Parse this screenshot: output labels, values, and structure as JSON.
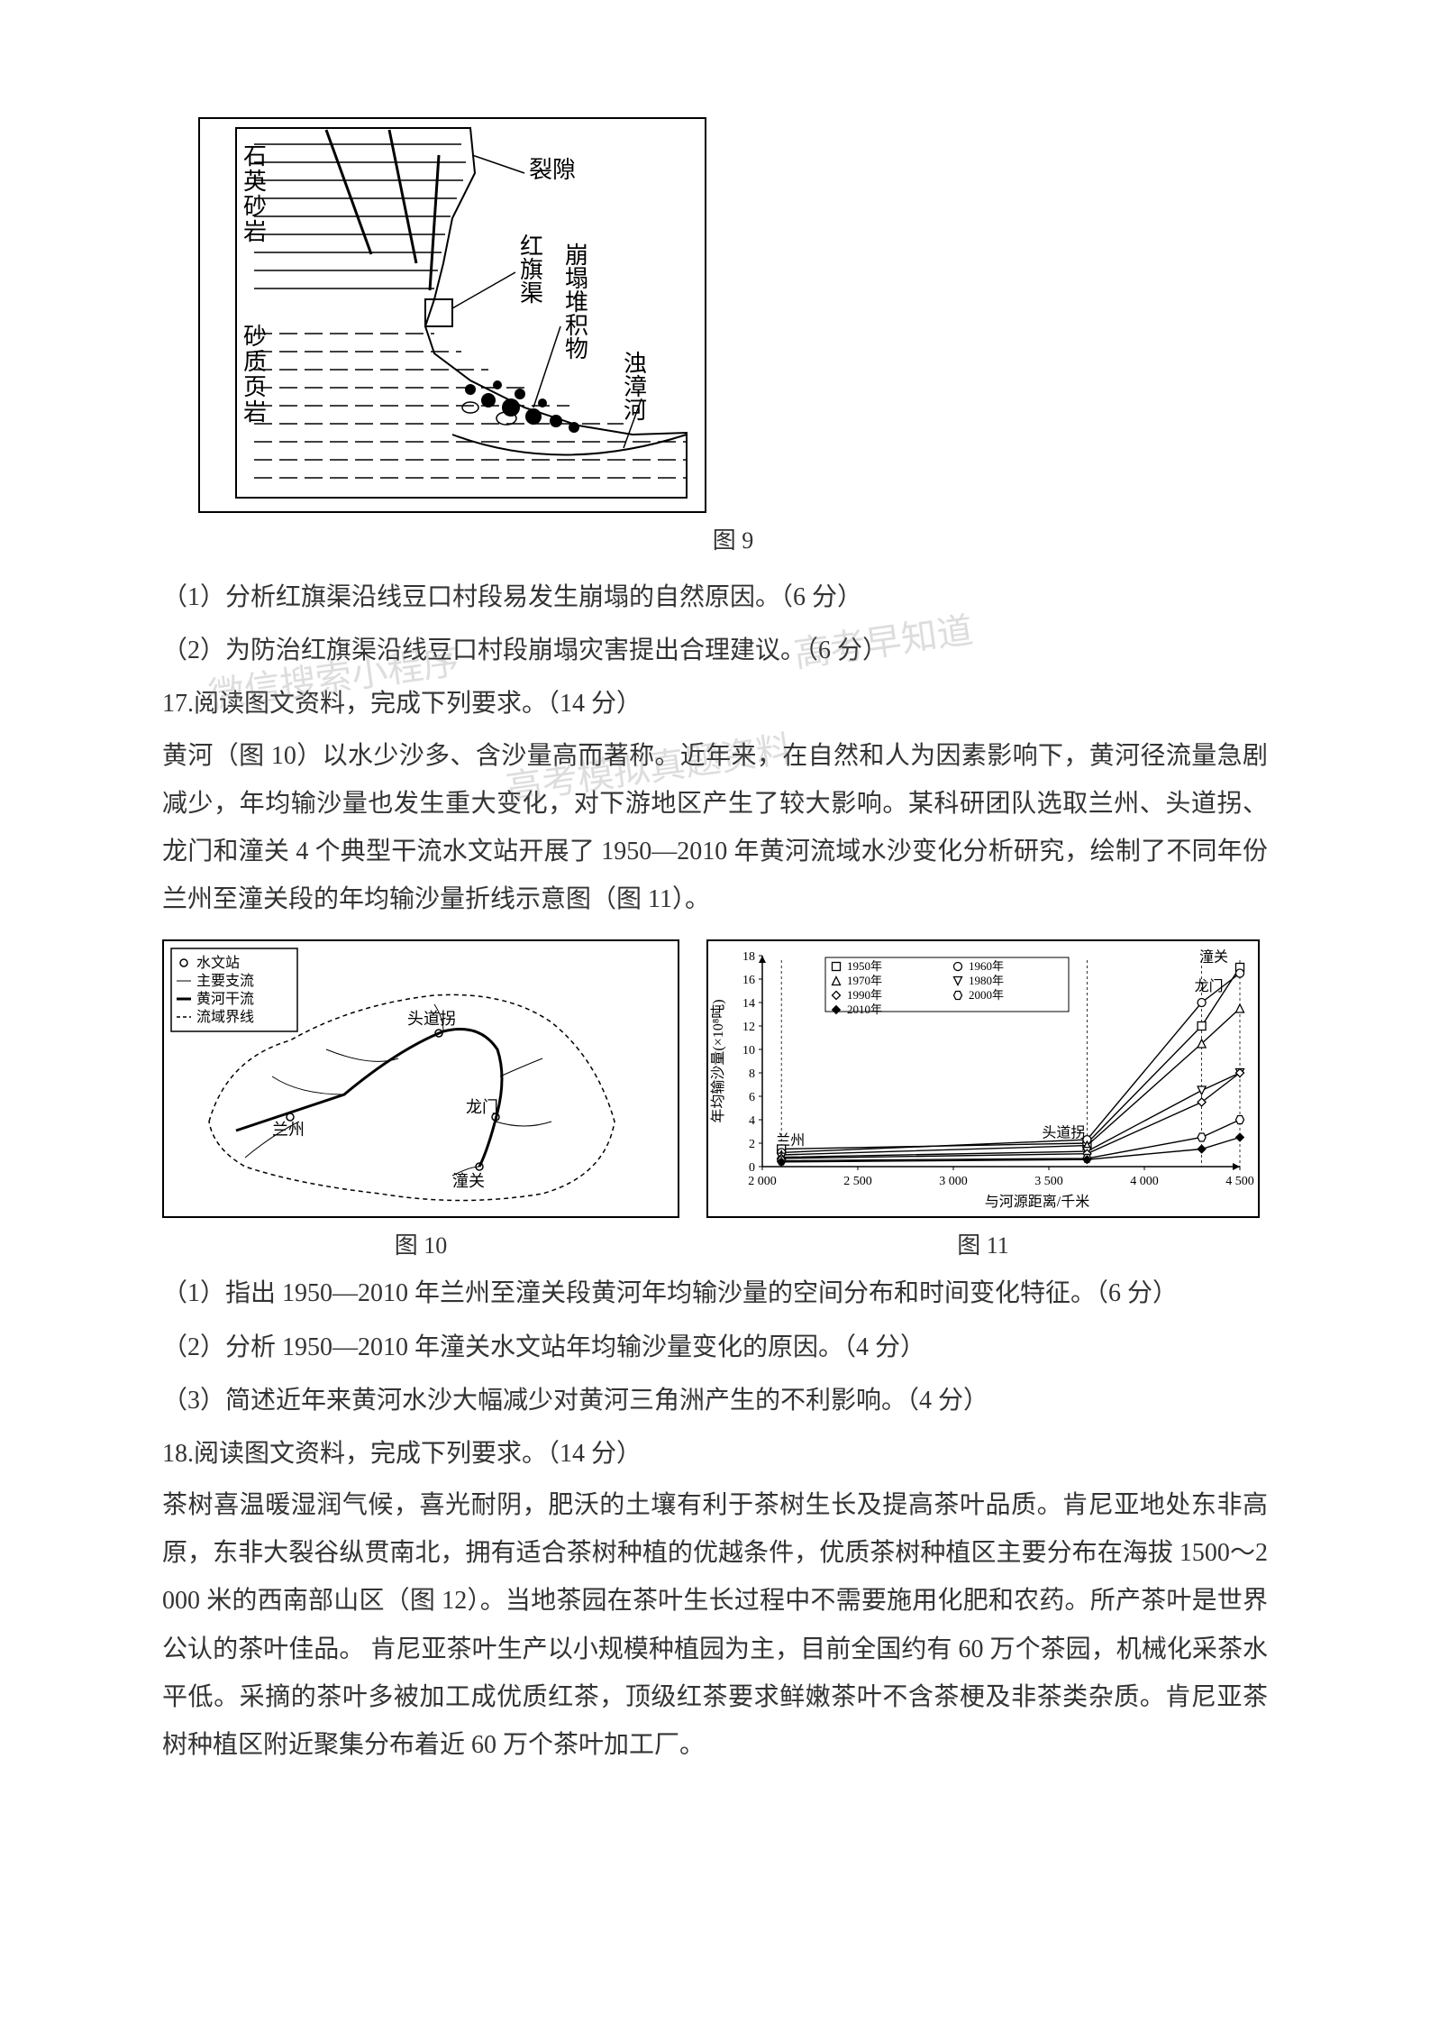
{
  "fig9": {
    "caption": "图 9",
    "labels": {
      "rock_top": "石英砂岩",
      "rock_bottom": "砂质页岩",
      "crack": "裂隙",
      "channel": "红旗渠",
      "collapse": "崩塌堆积物",
      "river": "浊漳河"
    },
    "colors": {
      "stroke": "#000000",
      "bg": "#ffffff"
    }
  },
  "q16": {
    "sub1": "（1）分析红旗渠沿线豆口村段易发生崩塌的自然原因。（6 分）",
    "sub2": "（2）为防治红旗渠沿线豆口村段崩塌灾害提出合理建议。（6 分）"
  },
  "q17": {
    "head": "17.阅读图文资料，完成下列要求。（14 分）",
    "para": "黄河（图 10）以水少沙多、含沙量高而著称。近年来，在自然和人为因素影响下，黄河径流量急剧减少，年均输沙量也发生重大变化，对下游地区产生了较大影响。某科研团队选取兰州、头道拐、龙门和潼关 4 个典型干流水文站开展了 1950—2010 年黄河流域水沙变化分析研究，绘制了不同年份兰州至潼关段的年均输沙量折线示意图（图 11）。",
    "sub1": "（1）指出 1950—2010 年兰州至潼关段黄河年均输沙量的空间分布和时间变化特征。（6 分）",
    "sub2": "（2）分析 1950—2010 年潼关水文站年均输沙量变化的原因。（4 分）",
    "sub3": "（3）简述近年来黄河水沙大幅减少对黄河三角洲产生的不利影响。（4 分）"
  },
  "fig10": {
    "caption": "图 10",
    "legend": {
      "station": "水文站",
      "tributary": "主要支流",
      "main": "黄河干流",
      "boundary": "流域界线"
    },
    "stations": [
      "兰州",
      "头道拐",
      "龙门",
      "潼关"
    ]
  },
  "fig11": {
    "caption": "图 11",
    "type": "line",
    "xlabel": "与河源距离/千米",
    "ylabel": "年均输沙量(×10⁸吨)",
    "xlim": [
      2000,
      4500
    ],
    "xtick_step": 500,
    "ylim": [
      0,
      18
    ],
    "ytick_step": 2,
    "station_labels": {
      "lanzhou": {
        "x": 2100,
        "label": "兰州"
      },
      "toudaoguai": {
        "x": 3700,
        "label": "头道拐"
      },
      "longmen": {
        "x": 4300,
        "label": "龙门"
      },
      "tongguan": {
        "x": 4500,
        "label": "潼关"
      }
    },
    "legend_items": [
      {
        "name": "1950年",
        "marker": "square"
      },
      {
        "name": "1960年",
        "marker": "circle"
      },
      {
        "name": "1970年",
        "marker": "triangle-up"
      },
      {
        "name": "1980年",
        "marker": "triangle-down"
      },
      {
        "name": "1990年",
        "marker": "diamond-open"
      },
      {
        "name": "2000年",
        "marker": "hexagon"
      },
      {
        "name": "2010年",
        "marker": "diamond"
      }
    ],
    "series": {
      "1950": {
        "x": [
          2100,
          3700,
          4300,
          4500
        ],
        "y": [
          1.5,
          2.0,
          12.0,
          17.0
        ],
        "marker": "square"
      },
      "1960": {
        "x": [
          2100,
          3700,
          4300,
          4500
        ],
        "y": [
          1.2,
          2.3,
          14.0,
          16.5
        ],
        "marker": "circle"
      },
      "1970": {
        "x": [
          2100,
          3700,
          4300,
          4500
        ],
        "y": [
          1.0,
          1.8,
          10.5,
          13.5
        ],
        "marker": "triangle-up"
      },
      "1980": {
        "x": [
          2100,
          3700,
          4300,
          4500
        ],
        "y": [
          0.8,
          1.3,
          6.5,
          8.0
        ],
        "marker": "triangle-down"
      },
      "1990": {
        "x": [
          2100,
          3700,
          4300,
          4500
        ],
        "y": [
          0.7,
          1.1,
          5.5,
          8.0
        ],
        "marker": "diamond-open"
      },
      "2000": {
        "x": [
          2100,
          3700,
          4300,
          4500
        ],
        "y": [
          0.5,
          0.7,
          2.5,
          4.0
        ],
        "marker": "hexagon"
      },
      "2010": {
        "x": [
          2100,
          3700,
          4300,
          4500
        ],
        "y": [
          0.4,
          0.6,
          1.5,
          2.5
        ],
        "marker": "diamond"
      }
    },
    "colors": {
      "axis": "#000000",
      "line": "#000000",
      "bg": "#ffffff"
    },
    "line_width": 1.4
  },
  "q18": {
    "head": "18.阅读图文资料，完成下列要求。（14 分）",
    "para": "茶树喜温暖湿润气候，喜光耐阴，肥沃的土壤有利于茶树生长及提高茶叶品质。肯尼亚地处东非高原，东非大裂谷纵贯南北，拥有适合茶树种植的优越条件，优质茶树种植区主要分布在海拔 1500～2 000 米的西南部山区（图 12）。当地茶园在茶叶生长过程中不需要施用化肥和农药。所产茶叶是世界公认的茶叶佳品。 肯尼亚茶叶生产以小规模种植园为主，目前全国约有 60 万个茶园，机械化采茶水平低。采摘的茶叶多被加工成优质红茶，顶级红茶要求鲜嫩茶叶不含茶梗及非茶类杂质。肯尼亚茶树种植区附近聚集分布着近 60 万个茶叶加工厂。"
  },
  "watermarks": {
    "wm1": "微信搜索小程序",
    "wm2": "高考早知道",
    "wm3": "高考模拟真题资料"
  }
}
